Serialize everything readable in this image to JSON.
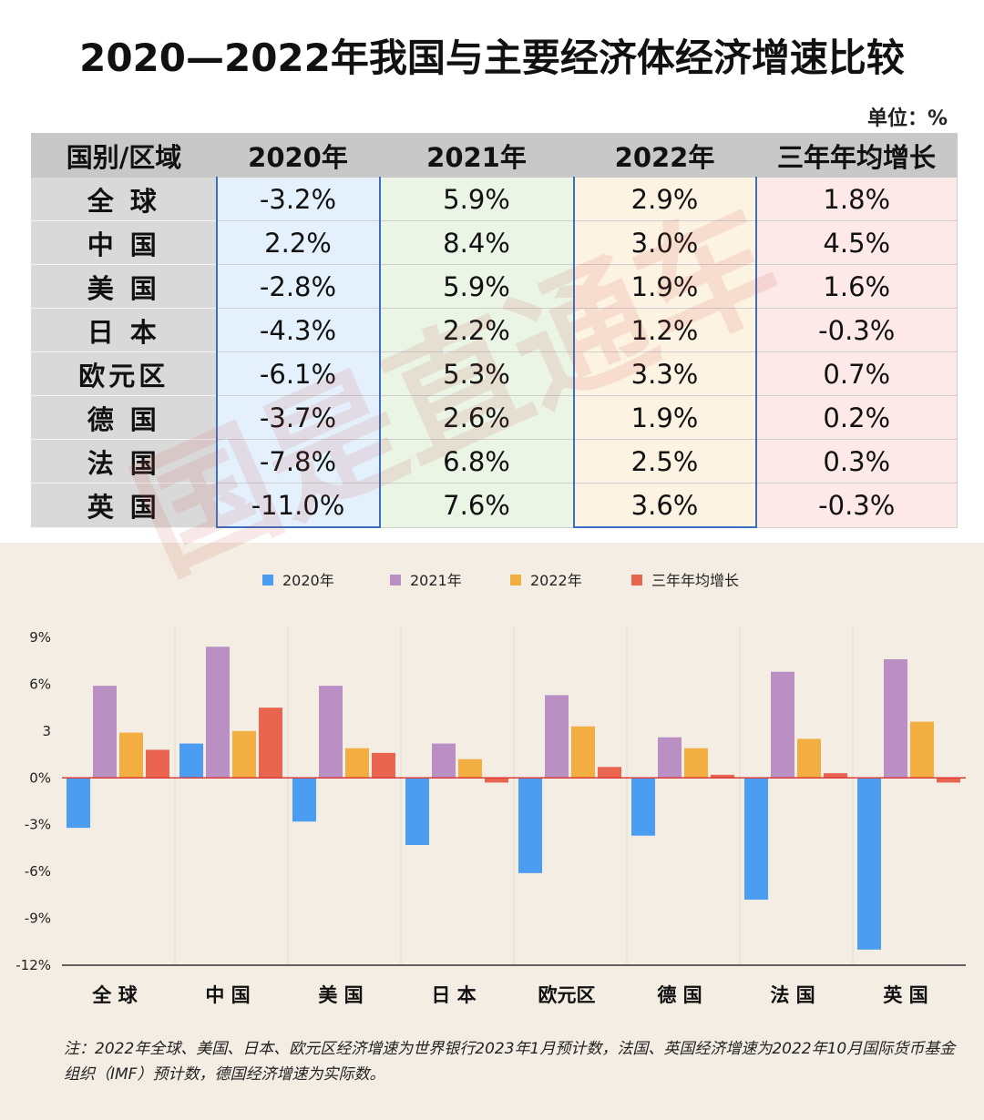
{
  "title": "2020—2022年我国与主要经济体经济增速比较",
  "unit": "单位：%",
  "watermark": "国是直通车",
  "table": {
    "headers": [
      "国别/区域",
      "2020年",
      "2021年",
      "2022年",
      "三年年均增长"
    ],
    "rows": [
      {
        "name": "全 球",
        "values": [
          "-3.2%",
          "5.9%",
          "2.9%",
          "1.8%"
        ]
      },
      {
        "name": "中 国",
        "values": [
          "2.2%",
          "8.4%",
          "3.0%",
          "4.5%"
        ]
      },
      {
        "name": "美 国",
        "values": [
          "-2.8%",
          "5.9%",
          "1.9%",
          "1.6%"
        ]
      },
      {
        "name": "日 本",
        "values": [
          "-4.3%",
          "2.2%",
          "1.2%",
          "-0.3%"
        ]
      },
      {
        "name": "欧元区",
        "values": [
          "-6.1%",
          "5.3%",
          "3.3%",
          "0.7%"
        ]
      },
      {
        "name": "德 国",
        "values": [
          "-3.7%",
          "2.6%",
          "1.9%",
          "0.2%"
        ]
      },
      {
        "name": "法 国",
        "values": [
          "-7.8%",
          "6.8%",
          "2.5%",
          "0.3%"
        ]
      },
      {
        "name": "英 国",
        "values": [
          "-11.0%",
          "7.6%",
          "3.6%",
          "-0.3%"
        ]
      }
    ]
  },
  "chart_data": {
    "type": "bar",
    "categories": [
      "全 球",
      "中 国",
      "美 国",
      "日 本",
      "欧元区",
      "德 国",
      "法 国",
      "英 国"
    ],
    "series": [
      {
        "name": "2020年",
        "color": "#4a9df0",
        "values": [
          -3.2,
          2.2,
          -2.8,
          -4.3,
          -6.1,
          -3.7,
          -7.8,
          -11.0
        ]
      },
      {
        "name": "2021年",
        "color": "#b98fc4",
        "values": [
          5.9,
          8.4,
          5.9,
          2.2,
          5.3,
          2.6,
          6.8,
          7.6
        ]
      },
      {
        "name": "2022年",
        "color": "#f2ae40",
        "values": [
          2.9,
          3.0,
          1.9,
          1.2,
          3.3,
          1.9,
          2.5,
          3.6
        ]
      },
      {
        "name": "三年年均增长",
        "color": "#ea6550",
        "values": [
          1.8,
          4.5,
          1.6,
          -0.3,
          0.7,
          0.2,
          0.3,
          -0.3
        ]
      }
    ],
    "ylim": [
      -12,
      9
    ],
    "yticks": [
      9,
      6,
      3,
      0,
      -3,
      -6,
      -9,
      -12
    ],
    "ytick_labels": [
      "9%",
      "6%",
      "3",
      "0%",
      "-3%",
      "-6%",
      "-9%",
      "-12%"
    ],
    "zero_line_color": "#d93a3a",
    "legend": "top-center",
    "grid": false
  },
  "note": "注：2022年全球、美国、日本、欧元区经济增速为世界银行2023年1月预计数，法国、英国经济增速为2022年10月国际货币基金组织（IMF）预计数，德国经济增速为实际数。"
}
